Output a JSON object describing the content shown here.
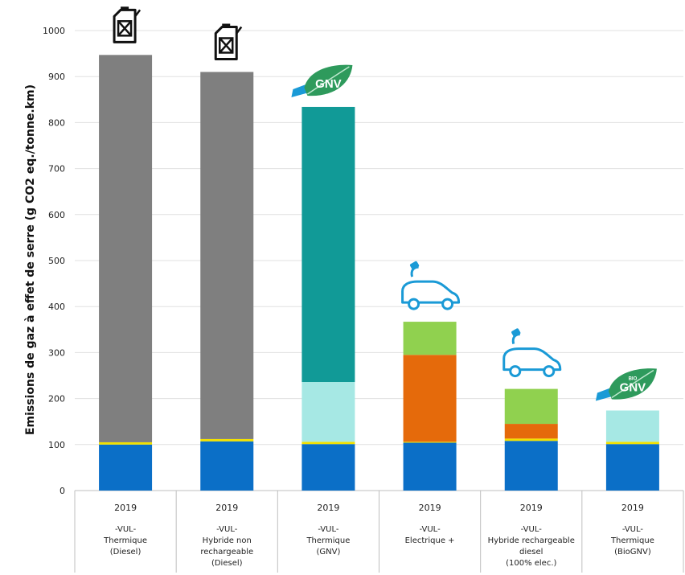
{
  "chart_data": {
    "type": "bar",
    "stacked": true,
    "ylabel": "Emissions de gaz à effet de serre (g CO2 eq./tonne.km)",
    "ylim": [
      0,
      1000
    ],
    "yticks": [
      0,
      100,
      200,
      300,
      400,
      500,
      600,
      700,
      800,
      900,
      1000
    ],
    "grid": true,
    "legend": "none",
    "categories": [
      {
        "year": "2019",
        "lines": [
          "-VUL-",
          "Thermique",
          "(Diesel)"
        ],
        "icon": "fuel-can-icon"
      },
      {
        "year": "2019",
        "lines": [
          "-VUL-",
          "Hybride non",
          "rechargeable",
          "(Diesel)"
        ],
        "icon": "fuel-can-icon"
      },
      {
        "year": "2019",
        "lines": [
          "-VUL-",
          "Thermique",
          "(GNV)"
        ],
        "icon": "gnv-leaf-icon"
      },
      {
        "year": "2019",
        "lines": [
          "-VUL-",
          "Electrique +"
        ],
        "icon": "electric-car-icon"
      },
      {
        "year": "2019",
        "lines": [
          "-VUL-",
          "Hybride rechargeable",
          "diesel",
          "(100% elec.)"
        ],
        "icon": "electric-car-icon"
      },
      {
        "year": "2019",
        "lines": [
          "-VUL-",
          "Thermique",
          "(BioGNV)"
        ],
        "icon": "biognv-leaf-icon"
      }
    ],
    "series": [
      {
        "color": "#0b6fc7",
        "values": [
          100,
          107,
          101,
          104,
          108,
          101
        ]
      },
      {
        "color": "#f2e100",
        "values": [
          5,
          5,
          5,
          2,
          5,
          5
        ]
      },
      {
        "color": "#7f7f7f",
        "values": [
          842,
          798,
          0,
          0,
          0,
          0
        ]
      },
      {
        "color": "#a6e8e4",
        "values": [
          0,
          0,
          130,
          0,
          0,
          68
        ]
      },
      {
        "color": "#119a97",
        "values": [
          0,
          0,
          598,
          0,
          0,
          0
        ]
      },
      {
        "color": "#e56a0b",
        "values": [
          0,
          0,
          0,
          189,
          32,
          0
        ]
      },
      {
        "color": "#90d14f",
        "values": [
          0,
          0,
          0,
          72,
          76,
          0
        ]
      }
    ],
    "icon_labels": {
      "gnv": "GNV",
      "biognv_small": "BIO",
      "biognv": "GNV"
    },
    "colors": {
      "axis": "#bfbfbf",
      "grid": "#e0e0e0",
      "icon_blue": "#1a9ad6",
      "leaf_green": "#2e9a5c"
    }
  }
}
